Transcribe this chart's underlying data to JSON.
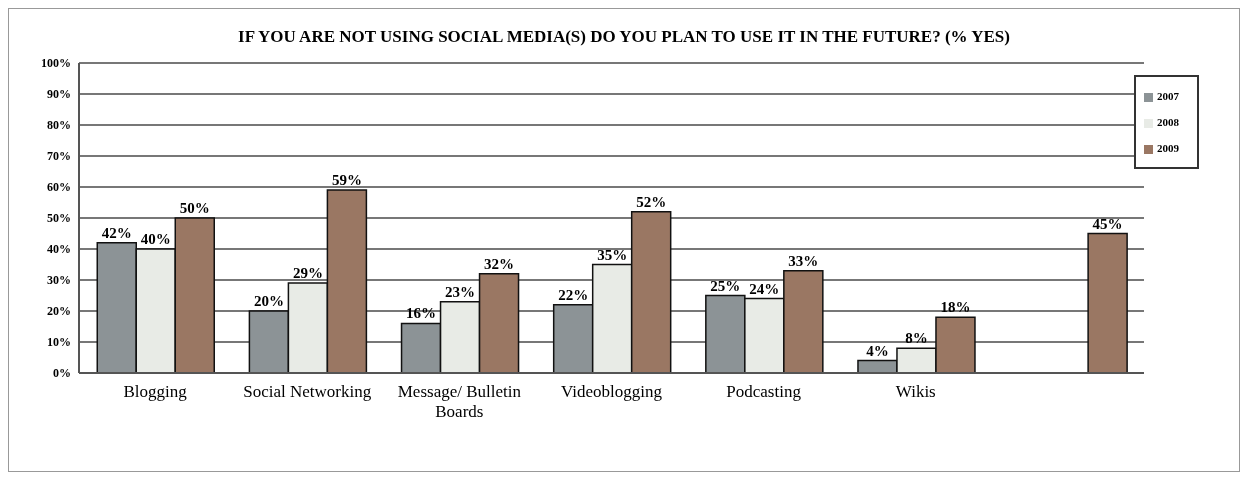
{
  "chart_data": {
    "type": "bar",
    "title": "IF YOU ARE NOT USING SOCIAL MEDIA(S) DO YOU PLAN TO USE IT IN THE FUTURE? (% YES)",
    "categories": [
      "Blogging",
      "Social Networking",
      "Message/ Bulletin Boards",
      "Videoblogging",
      "Podcasting",
      "Wikis",
      null
    ],
    "series": [
      {
        "name": "2007",
        "color": "#8c9396",
        "values": [
          42,
          20,
          16,
          22,
          25,
          4,
          null
        ],
        "value_labels": [
          "42%",
          "20%",
          "16%",
          "22%",
          "25%",
          "4%",
          null
        ]
      },
      {
        "name": "2008",
        "color": "#e8ebe6",
        "values": [
          40,
          29,
          23,
          35,
          24,
          8,
          null
        ],
        "value_labels": [
          "40%",
          "29%",
          "23%",
          "35%",
          "24%",
          "8%",
          null
        ]
      },
      {
        "name": "2009",
        "color": "#9a7763",
        "values": [
          50,
          59,
          32,
          52,
          33,
          18,
          45
        ],
        "value_labels": [
          "50%",
          "59%",
          "32%",
          "52%",
          "33%",
          "18%",
          "45%"
        ]
      }
    ],
    "ylim": [
      0,
      100
    ],
    "yticks": [
      {
        "value": 0,
        "label": "0%"
      },
      {
        "value": 10,
        "label": "10%"
      },
      {
        "value": 20,
        "label": "20%"
      },
      {
        "value": 30,
        "label": "30%"
      },
      {
        "value": 40,
        "label": "40%"
      },
      {
        "value": 50,
        "label": "50%"
      },
      {
        "value": 60,
        "label": "60%"
      },
      {
        "value": 70,
        "label": "70%"
      },
      {
        "value": 80,
        "label": "80%"
      },
      {
        "value": 90,
        "label": "90%"
      },
      {
        "value": 100,
        "label": "100%"
      }
    ],
    "grid": "y",
    "legend": "top right"
  }
}
